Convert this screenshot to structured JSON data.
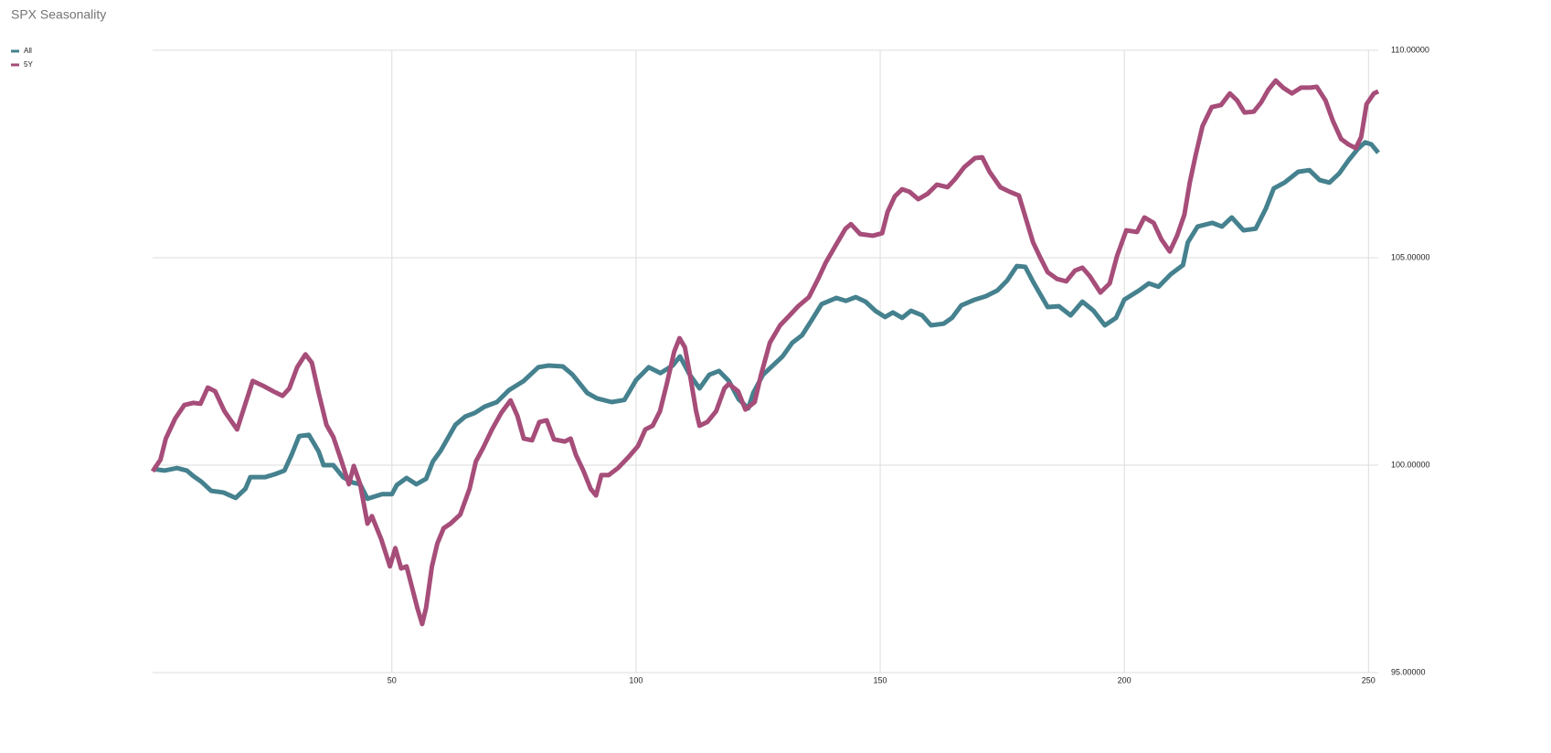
{
  "chart_data": {
    "type": "line",
    "title": "SPX Seasonality",
    "xlim": [
      1,
      252
    ],
    "xticks": [
      50,
      100,
      150,
      200,
      250
    ],
    "ylim": [
      95,
      110
    ],
    "yticks": [
      {
        "value": 95,
        "label": "95.00000"
      },
      {
        "value": 100,
        "label": "100.00000"
      },
      {
        "value": 105,
        "label": "105.00000"
      },
      {
        "value": 110,
        "label": "110.00000"
      }
    ],
    "grid": true,
    "legend": "top-left",
    "series": [
      {
        "name": "All",
        "color": "#45818e",
        "x": [
          1,
          3.4,
          6,
          8,
          9.3,
          11,
          13,
          15.5,
          18,
          20,
          21,
          24,
          26,
          28,
          29.5,
          31,
          33,
          35,
          36,
          38,
          40,
          42,
          43.5,
          45,
          48,
          50,
          51,
          53,
          55,
          57,
          58.4,
          60,
          63,
          65,
          67,
          69,
          71.5,
          74,
          77,
          80,
          82,
          85,
          87,
          90,
          92,
          95,
          97.6,
          100,
          102.6,
          105,
          107.5,
          109,
          111,
          113,
          115,
          117,
          119,
          121,
          123,
          124,
          126,
          128,
          130,
          132,
          134,
          136,
          138,
          141,
          143,
          145,
          147,
          149,
          151,
          152.6,
          154.5,
          156.3,
          158.6,
          160.4,
          163,
          164.7,
          166.6,
          169.4,
          171.6,
          174,
          176,
          178,
          179.7,
          181.5,
          184.3,
          186.6,
          189,
          191.4,
          193.7,
          196,
          198.3,
          200,
          203,
          205,
          207,
          209.5,
          212,
          213,
          215,
          218,
          220,
          222,
          224.4,
          226.9,
          229,
          230.6,
          232.8,
          235.6,
          237.9,
          240,
          242,
          244,
          246,
          247.8,
          249.3,
          250.6,
          252
        ],
        "values": [
          99.91,
          99.87,
          99.93,
          99.87,
          99.74,
          99.6,
          99.38,
          99.34,
          99.21,
          99.43,
          99.71,
          99.71,
          99.78,
          99.87,
          100.26,
          100.7,
          100.73,
          100.33,
          100.0,
          100.0,
          99.71,
          99.58,
          99.54,
          99.19,
          99.3,
          99.3,
          99.52,
          99.69,
          99.54,
          99.67,
          100.09,
          100.35,
          100.97,
          101.17,
          101.26,
          101.41,
          101.52,
          101.81,
          102.03,
          102.36,
          102.4,
          102.38,
          102.18,
          101.74,
          101.61,
          101.52,
          101.57,
          102.05,
          102.36,
          102.22,
          102.4,
          102.62,
          102.18,
          101.85,
          102.18,
          102.27,
          102.03,
          101.59,
          101.37,
          101.74,
          102.18,
          102.4,
          102.62,
          102.95,
          103.13,
          103.5,
          103.88,
          104.03,
          103.96,
          104.05,
          103.94,
          103.72,
          103.57,
          103.68,
          103.55,
          103.72,
          103.61,
          103.37,
          103.41,
          103.55,
          103.85,
          103.99,
          104.07,
          104.21,
          104.45,
          104.8,
          104.78,
          104.38,
          103.81,
          103.83,
          103.61,
          103.94,
          103.72,
          103.37,
          103.55,
          103.99,
          104.21,
          104.38,
          104.3,
          104.6,
          104.82,
          105.37,
          105.75,
          105.84,
          105.75,
          105.97,
          105.66,
          105.7,
          106.19,
          106.67,
          106.81,
          107.07,
          107.11,
          106.87,
          106.81,
          107.03,
          107.36,
          107.62,
          107.78,
          107.73,
          107.53
        ]
      },
      {
        "name": "5Y",
        "color": "#a64d79",
        "x": [
          1,
          2.6,
          3.7,
          5.6,
          7.5,
          9.3,
          10.8,
          12.3,
          13.8,
          15.7,
          18.3,
          20.1,
          21.5,
          23.5,
          25.7,
          27.6,
          29,
          30.6,
          32.3,
          33.6,
          35,
          36.6,
          38,
          39.7,
          41.2,
          42.2,
          43.5,
          45,
          45.9,
          47.8,
          49.6,
          50.7,
          51.9,
          53,
          54,
          55.2,
          56.2,
          57,
          58.2,
          59.3,
          60.6,
          62,
          64,
          65.9,
          67.2,
          68.7,
          70.5,
          72.4,
          74.3,
          75.7,
          77,
          78.7,
          80.2,
          81.7,
          83.2,
          85.4,
          86.6,
          87.7,
          89.2,
          90.7,
          91.8,
          92.9,
          94.4,
          96.3,
          98.5,
          100.4,
          101.9,
          103.4,
          104.9,
          106.3,
          107.8,
          108.9,
          110,
          111.2,
          112.3,
          113,
          114.6,
          116.4,
          118.1,
          119,
          120.9,
          122.4,
          124.3,
          125.6,
          127.4,
          129.5,
          131.3,
          133.2,
          135.4,
          137.3,
          138.8,
          140.7,
          142.9,
          144,
          145.9,
          148.5,
          150.4,
          151.5,
          153,
          154.5,
          156,
          157.8,
          159.7,
          161.6,
          163.8,
          165.3,
          167.2,
          169.4,
          170.9,
          172.4,
          174.6,
          176.5,
          178.4,
          179.9,
          181.3,
          182.8,
          184.3,
          186.2,
          188.1,
          189.9,
          191.4,
          192.9,
          195.1,
          197,
          198.5,
          200.4,
          202.6,
          204.1,
          206,
          207.6,
          209.3,
          210.8,
          212.3,
          213.4,
          214.6,
          216,
          217.9,
          219.8,
          221.6,
          223.1,
          224.6,
          226.5,
          228,
          229.5,
          231,
          232.5,
          234.3,
          236.2,
          238.1,
          239.4,
          241.2,
          242.7,
          244.4,
          245.9,
          247.4,
          248.5,
          249.6,
          251.1,
          252
        ],
        "values": [
          99.85,
          100.13,
          100.64,
          101.12,
          101.45,
          101.5,
          101.48,
          101.87,
          101.78,
          101.3,
          100.86,
          101.52,
          102.03,
          101.92,
          101.78,
          101.67,
          101.85,
          102.36,
          102.67,
          102.47,
          101.74,
          100.97,
          100.68,
          100.09,
          99.54,
          99.98,
          99.54,
          98.59,
          98.77,
          98.22,
          97.56,
          98.0,
          97.51,
          97.56,
          97.11,
          96.56,
          96.17,
          96.56,
          97.56,
          98.11,
          98.48,
          98.59,
          98.81,
          99.43,
          100.09,
          100.42,
          100.86,
          101.26,
          101.56,
          101.19,
          100.64,
          100.6,
          101.04,
          101.08,
          100.62,
          100.57,
          100.64,
          100.24,
          99.87,
          99.43,
          99.27,
          99.76,
          99.76,
          99.93,
          100.2,
          100.46,
          100.86,
          100.95,
          101.3,
          101.96,
          102.73,
          103.06,
          102.84,
          102.07,
          101.3,
          100.95,
          101.04,
          101.3,
          101.85,
          101.96,
          101.78,
          101.34,
          101.52,
          102.18,
          102.95,
          103.37,
          103.59,
          103.83,
          104.05,
          104.49,
          104.87,
          105.26,
          105.7,
          105.81,
          105.57,
          105.53,
          105.59,
          106.1,
          106.48,
          106.65,
          106.59,
          106.41,
          106.54,
          106.76,
          106.7,
          106.89,
          107.18,
          107.4,
          107.42,
          107.07,
          106.7,
          106.59,
          106.5,
          105.92,
          105.37,
          105.0,
          104.65,
          104.49,
          104.43,
          104.69,
          104.76,
          104.56,
          104.16,
          104.38,
          105.04,
          105.66,
          105.62,
          105.97,
          105.84,
          105.44,
          105.15,
          105.53,
          106.04,
          106.81,
          107.47,
          108.17,
          108.63,
          108.68,
          108.96,
          108.79,
          108.5,
          108.52,
          108.74,
          109.05,
          109.27,
          109.1,
          108.96,
          109.1,
          109.1,
          109.12,
          108.79,
          108.3,
          107.86,
          107.73,
          107.64,
          107.91,
          108.7,
          108.96,
          109.01
        ]
      }
    ]
  }
}
